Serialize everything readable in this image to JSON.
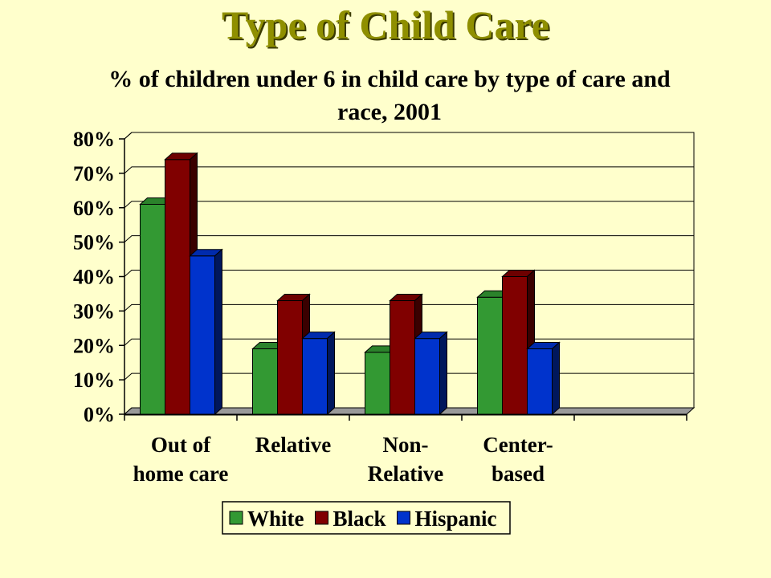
{
  "slide": {
    "title": "Type of Child Care"
  },
  "chart_data": {
    "type": "bar",
    "title": "% of children under 6 in child care by type of care and race, 2001",
    "categories": [
      [
        "Out of",
        "home care"
      ],
      [
        "Relative"
      ],
      [
        "Non-",
        "Relative"
      ],
      [
        "Center-",
        "based"
      ]
    ],
    "series": [
      {
        "name": "White",
        "color": "#339933",
        "values": [
          61,
          19,
          18,
          34
        ]
      },
      {
        "name": "Black",
        "color": "#800000",
        "values": [
          74,
          33,
          33,
          40
        ]
      },
      {
        "name": "Hispanic",
        "color": "#0033cc",
        "values": [
          46,
          22,
          22,
          19
        ]
      }
    ],
    "ylim": [
      0,
      80
    ],
    "yticks": [
      "0%",
      "10%",
      "20%",
      "30%",
      "40%",
      "50%",
      "60%",
      "70%",
      "80%"
    ],
    "grid": true,
    "legend_position": "bottom"
  }
}
